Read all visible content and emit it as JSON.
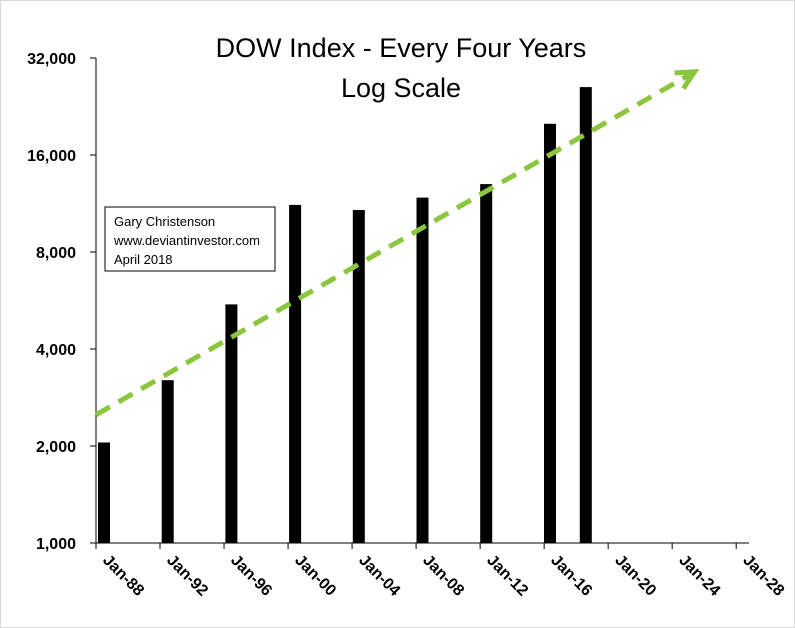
{
  "chart_data": {
    "type": "bar",
    "title": "DOW Index - Every Four Years",
    "subtitle": "Log Scale",
    "y_scale": "log2",
    "ylim": [
      1000,
      32000
    ],
    "grid": false,
    "y_ticks": [
      {
        "value": 1000,
        "label": "1,000"
      },
      {
        "value": 2000,
        "label": "2,000"
      },
      {
        "value": 4000,
        "label": "4,000"
      },
      {
        "value": 8000,
        "label": "8,000"
      },
      {
        "value": 16000,
        "label": "16,000"
      },
      {
        "value": 32000,
        "label": "32,000"
      }
    ],
    "x_ticks": [
      "Jan-88",
      "Jan-92",
      "Jan-96",
      "Jan-00",
      "Jan-04",
      "Jan-08",
      "Jan-12",
      "Jan-16",
      "Jan-20",
      "Jan-24",
      "Jan-28"
    ],
    "xlim": [
      "1988-01",
      "2029-01"
    ],
    "bars": [
      {
        "date": "1988-01",
        "value": 2050
      },
      {
        "date": "1992-01",
        "value": 3200
      },
      {
        "date": "1996-01",
        "value": 5500
      },
      {
        "date": "2000-01",
        "value": 11200
      },
      {
        "date": "2004-01",
        "value": 10800
      },
      {
        "date": "2008-01",
        "value": 11800
      },
      {
        "date": "2012-01",
        "value": 13000
      },
      {
        "date": "2016-01",
        "value": 20000
      },
      {
        "date": "2018-04",
        "value": 26000
      }
    ],
    "bar_color": "#000000",
    "trend_line": {
      "style": "dashed arrow",
      "color": "#8cc63f",
      "start": {
        "date": "1988-01",
        "value": 2500
      },
      "end": {
        "date": "2025-08",
        "value": 29000
      }
    },
    "annotation": {
      "lines": [
        "Gary Christenson",
        "www.deviantinvestor.com",
        "April 2018"
      ]
    }
  }
}
